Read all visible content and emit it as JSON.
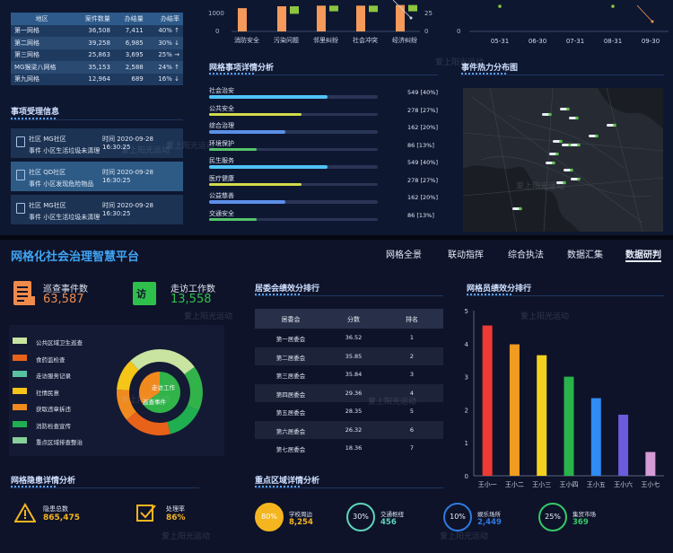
{
  "top_table": {
    "headers": [
      "地区",
      "案件数量",
      "办结量",
      "办结率"
    ],
    "rows": [
      [
        "第一网格",
        "36,508",
        "7,411",
        "40% ↑"
      ],
      [
        "第二网格",
        "39,258",
        "6,985",
        "30% ↓"
      ],
      [
        "第三网格",
        "25,863",
        "3,695",
        "25% →"
      ],
      [
        "MG猴梁八网格",
        "35,153",
        "2,588",
        "24% ↑"
      ],
      [
        "第九网格",
        "12,964",
        "689",
        "16% ↓"
      ]
    ]
  },
  "acceptance": {
    "title": "事项受理信息",
    "items": [
      {
        "area": "社区  MG社区",
        "time": "时间  2020-09-28 16:30:25",
        "event": "事件  小区生活垃圾未清理"
      },
      {
        "area": "社区  QD社区",
        "time": "时间  2020-09-28 16:30:25",
        "event": "事件  小区发现危险物品"
      },
      {
        "area": "社区  MG社区",
        "time": "时间  2020-09-28 16:30:25",
        "event": "事件  小区生活垃圾未清理"
      }
    ]
  },
  "top_bar_chart": {
    "y_left_label": "1000",
    "y_left_zero": "0",
    "y_right_label": "25",
    "y_right_zero": "0",
    "categories": [
      "消防安全",
      "污染问题",
      "邻里纠纷",
      "社会冲突",
      "经济纠纷"
    ],
    "orange_heights": [
      0.74,
      0.8,
      0.82,
      0.82,
      0.84
    ],
    "green_heights": [
      0.0,
      0.24,
      0.18,
      0.2,
      0.2
    ],
    "colors": {
      "orange": "#f59a5a",
      "green": "#8cc63e"
    }
  },
  "top_line_chart": {
    "y_labels": [
      "0"
    ],
    "x_labels": [
      "05-31",
      "06-30",
      "07-31",
      "08-31",
      "09-30"
    ]
  },
  "grid_events": {
    "title": "网格事项详情分析",
    "items": [
      {
        "label": "社会治安",
        "value": "549 [40%]",
        "pct": 0.7,
        "color": "#4fc3f7"
      },
      {
        "label": "公共安全",
        "value": "278 [27%]",
        "pct": 0.55,
        "color": "#d4dc4a"
      },
      {
        "label": "综合治理",
        "value": "162 [20%]",
        "pct": 0.45,
        "color": "#5b8fe8"
      },
      {
        "label": "环境保护",
        "value": "86 [13%]",
        "pct": 0.28,
        "color": "#55c46a"
      },
      {
        "label": "民生服务",
        "value": "549 [40%]",
        "pct": 0.7,
        "color": "#4fc3f7"
      },
      {
        "label": "医疗健康",
        "value": "278 [27%]",
        "pct": 0.55,
        "color": "#d4dc4a"
      },
      {
        "label": "公益慈善",
        "value": "162 [20%]",
        "pct": 0.45,
        "color": "#5b8fe8"
      },
      {
        "label": "交通安全",
        "value": "86 [13%]",
        "pct": 0.28,
        "color": "#55c46a"
      }
    ]
  },
  "heatmap": {
    "title": "事件热力分布图"
  },
  "platform": {
    "title": "网格化社会治理智慧平台",
    "nav": [
      "网格全景",
      "联动指挥",
      "综合执法",
      "数据汇集",
      "数据研判"
    ],
    "active_nav": "数据研判"
  },
  "kpis": {
    "patrol_label": "巡查事件数",
    "patrol_value": "63,587",
    "visit_label": "走访工作数",
    "visit_value": "13,558",
    "visit_icon_char": "访"
  },
  "donut": {
    "legend": [
      {
        "label": "公共区域卫生巡查",
        "color": "#c8e4a0"
      },
      {
        "label": "食药监检查",
        "color": "#e8621a"
      },
      {
        "label": "走访服务记录",
        "color": "#57c2a0"
      },
      {
        "label": "社情民意",
        "color": "#f5c518"
      },
      {
        "label": "获取违章拆违",
        "color": "#f08a1e"
      },
      {
        "label": "消防检查宣传",
        "color": "#1fae50"
      },
      {
        "label": "重点区域排查整治",
        "color": "#88cf9a"
      }
    ],
    "center_top": "走访工作",
    "center_bottom": "巡查事件"
  },
  "committee": {
    "title": "居委会绩效分排行",
    "headers": [
      "居委会",
      "分数",
      "排名"
    ],
    "rows": [
      [
        "第一居委会",
        "36.52",
        "1"
      ],
      [
        "第二居委会",
        "35.85",
        "2"
      ],
      [
        "第三居委会",
        "35.84",
        "3"
      ],
      [
        "第四居委会",
        "29.36",
        "4"
      ],
      [
        "第五居委会",
        "28.35",
        "5"
      ],
      [
        "第六居委会",
        "26.32",
        "6"
      ],
      [
        "第七居委会",
        "18.36",
        "7"
      ]
    ]
  },
  "member_chart": {
    "title": "网格员绩效分排行",
    "type": "bar",
    "y_ticks": [
      "5",
      "4",
      "3",
      "2",
      "1",
      "0"
    ],
    "ylim": [
      0,
      5
    ],
    "categories": [
      "王小一",
      "王小二",
      "王小三",
      "王小四",
      "王小五",
      "王小六",
      "王小七"
    ],
    "values": [
      4.55,
      3.98,
      3.65,
      3.0,
      2.35,
      1.85,
      0.72
    ],
    "colors": [
      "#ee3a34",
      "#f19b20",
      "#f5d11f",
      "#29b34a",
      "#2f8cf2",
      "#6c5bdc",
      "#d49bd6"
    ]
  },
  "hazard": {
    "title": "网格隐患详情分析",
    "total_label": "隐患总数",
    "total_value": "865,475",
    "handled_label": "处理率",
    "handled_value": "86%"
  },
  "key_areas": {
    "title": "重点区域详情分析",
    "items": [
      {
        "pct": "80%",
        "label": "学校周边",
        "value": "8,254",
        "color": "#f5b51f",
        "fill": "#f5b51f",
        "filled": true
      },
      {
        "pct": "30%",
        "label": "交通枢纽",
        "value": "456",
        "color": "#5fd4b8",
        "fill": "#5fd4b8",
        "filled": false
      },
      {
        "pct": "10%",
        "label": "娱乐场所",
        "value": "2,449",
        "color": "#2f7ae0",
        "fill": "#2f7ae0",
        "filled": false
      },
      {
        "pct": "25%",
        "label": "集贸市场",
        "value": "369",
        "color": "#34c96a",
        "fill": "#34c96a",
        "filled": false
      }
    ]
  },
  "watermark_text": "爱上阳光运动"
}
